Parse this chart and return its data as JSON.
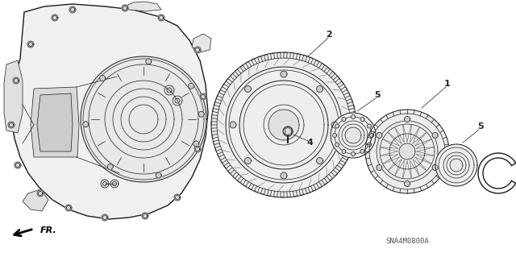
{
  "background_color": "#ffffff",
  "image_code": "SNA4M0800A",
  "fr_label": "FR.",
  "figsize": [
    6.4,
    3.19
  ],
  "dpi": 100,
  "line_color": "#1a1a1a",
  "label_color": "#222222"
}
